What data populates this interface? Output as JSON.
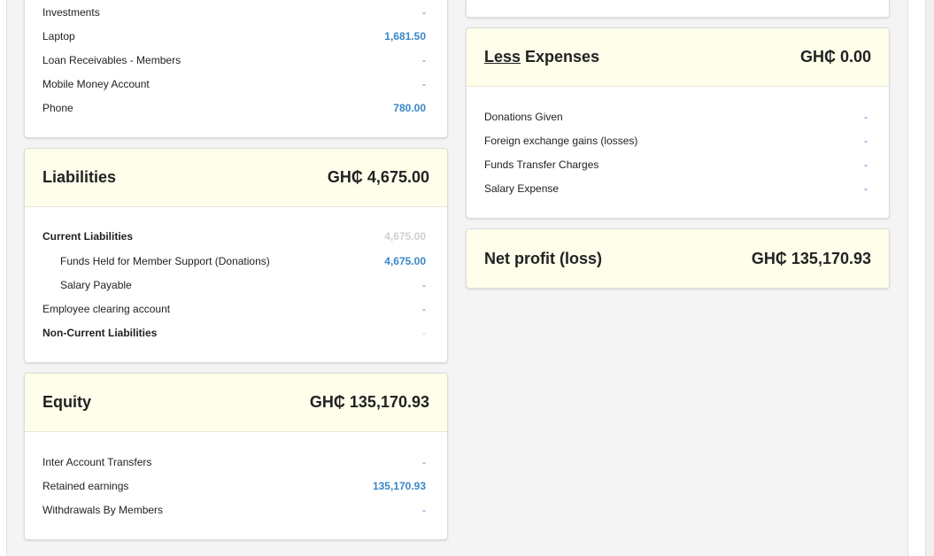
{
  "assets_tail": {
    "rows": [
      {
        "label": "Investments",
        "value": "-"
      },
      {
        "label": "Laptop",
        "value": "1,681.50"
      },
      {
        "label": "Loan Receivables - Members",
        "value": "-"
      },
      {
        "label": "Mobile Money Account",
        "value": "-"
      },
      {
        "label": "Phone",
        "value": "780.00"
      }
    ]
  },
  "liabilities": {
    "title": "Liabilities",
    "total": "GH₵ 4,675.00",
    "rows": [
      {
        "label": "Current Liabilities",
        "value": "4,675.00"
      },
      {
        "label": "Funds Held for Member Support (Donations)",
        "value": "4,675.00"
      },
      {
        "label": "Salary Payable",
        "value": "-"
      },
      {
        "label": "Employee clearing account",
        "value": "-"
      },
      {
        "label": "Non-Current Liabilities",
        "value": "-"
      }
    ]
  },
  "equity": {
    "title": "Equity",
    "total": "GH₵ 135,170.93",
    "rows": [
      {
        "label": "Inter Account Transfers",
        "value": "-"
      },
      {
        "label": "Retained earnings",
        "value": "135,170.93"
      },
      {
        "label": "Withdrawals By Members",
        "value": "-"
      }
    ]
  },
  "expenses": {
    "title_prefix": "Less",
    "title_suffix": " Expenses",
    "total": "GH₵ 0.00",
    "rows": [
      {
        "label": "Donations Given",
        "value": "-"
      },
      {
        "label": "Foreign exchange gains (losses)",
        "value": "-"
      },
      {
        "label": "Funds Transfer Charges",
        "value": "-"
      },
      {
        "label": "Salary Expense",
        "value": "-"
      }
    ]
  },
  "net_profit": {
    "title": "Net profit (loss)",
    "total": "GH₵ 135,170.93"
  },
  "colors": {
    "header_bg": "#fefeeb",
    "value_blue": "#3a86c8",
    "muted_value": "#cfcfcf"
  }
}
